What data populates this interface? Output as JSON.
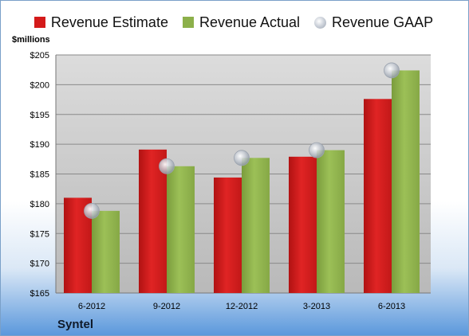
{
  "legend": {
    "estimate": "Revenue Estimate",
    "actual": "Revenue Actual",
    "gaap": "Revenue GAAP"
  },
  "unit_label": "$millions",
  "company": "Syntel",
  "chart_data": {
    "type": "bar",
    "categories": [
      "6-2012",
      "9-2012",
      "12-2012",
      "3-2013",
      "6-2013"
    ],
    "series": [
      {
        "name": "Revenue Estimate",
        "type": "bar",
        "color": "#d41a1a",
        "values": [
          181.0,
          189.1,
          184.4,
          187.9,
          197.6
        ]
      },
      {
        "name": "Revenue Actual",
        "type": "bar",
        "color": "#8cb04a",
        "values": [
          178.8,
          186.3,
          187.7,
          189.0,
          202.4
        ]
      },
      {
        "name": "Revenue GAAP",
        "type": "marker",
        "color": "#b8bec8",
        "values": [
          178.8,
          186.3,
          187.7,
          189.0,
          202.4
        ]
      }
    ],
    "yticks": [
      "$165",
      "$170",
      "$175",
      "$180",
      "$185",
      "$190",
      "$195",
      "$200",
      "$205"
    ],
    "ylabel": "$millions",
    "ylim": [
      165,
      205
    ],
    "grid": true,
    "legend_position": "top"
  }
}
